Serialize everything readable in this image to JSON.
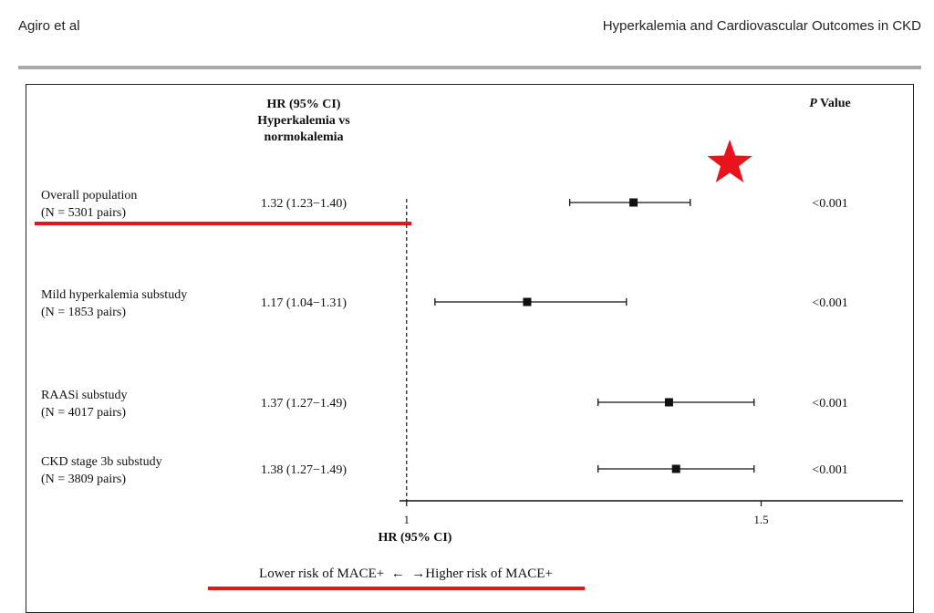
{
  "running_header": {
    "left": "Agiro et al",
    "right": "Hyperkalemia and Cardiovascular Outcomes in CKD"
  },
  "colors": {
    "annotation": "#e8141c",
    "ink": "#111111",
    "rule": "#a9a9a9"
  },
  "chart_data": {
    "type": "forest",
    "column_headers": {
      "hr_ci": [
        "HR (95% CI)",
        "Hyperkalemia vs",
        "normokalemia"
      ],
      "p_value_italic": "P",
      "p_value_rest": " Value"
    },
    "rows": [
      {
        "label": "Overall population",
        "sublabel": "(N = 5301 pairs)",
        "hr_text": "1.32 (1.23−1.40)",
        "hr": 1.32,
        "lower": 1.23,
        "upper": 1.4,
        "p": "<0.001"
      },
      {
        "label": "Mild hyperkalemia substudy",
        "sublabel": "(N = 1853 pairs)",
        "hr_text": "1.17 (1.04−1.31)",
        "hr": 1.17,
        "lower": 1.04,
        "upper": 1.31,
        "p": "<0.001"
      },
      {
        "label": "RAASi substudy",
        "sublabel": "(N = 4017 pairs)",
        "hr_text": "1.37 (1.27−1.49)",
        "hr": 1.37,
        "lower": 1.27,
        "upper": 1.49,
        "p": "<0.001"
      },
      {
        "label": "CKD stage 3b substudy",
        "sublabel": "(N = 3809 pairs)",
        "hr_text": "1.38 (1.27−1.49)",
        "hr": 1.38,
        "lower": 1.27,
        "upper": 1.49,
        "p": "<0.001"
      }
    ],
    "reference_line": 1,
    "xlim": [
      0.99,
      1.7
    ],
    "x_ticks": [
      {
        "value": 1,
        "label": "1"
      },
      {
        "value": 1.5,
        "label": "1.5"
      }
    ],
    "xlabel": "HR (95% CI)",
    "direction_label": "Lower risk of MACE+  ←  →Higher risk of MACE+",
    "annotations": {
      "star_on_row": 0,
      "underlined": [
        "overall-population-row",
        "direction-label"
      ]
    }
  }
}
